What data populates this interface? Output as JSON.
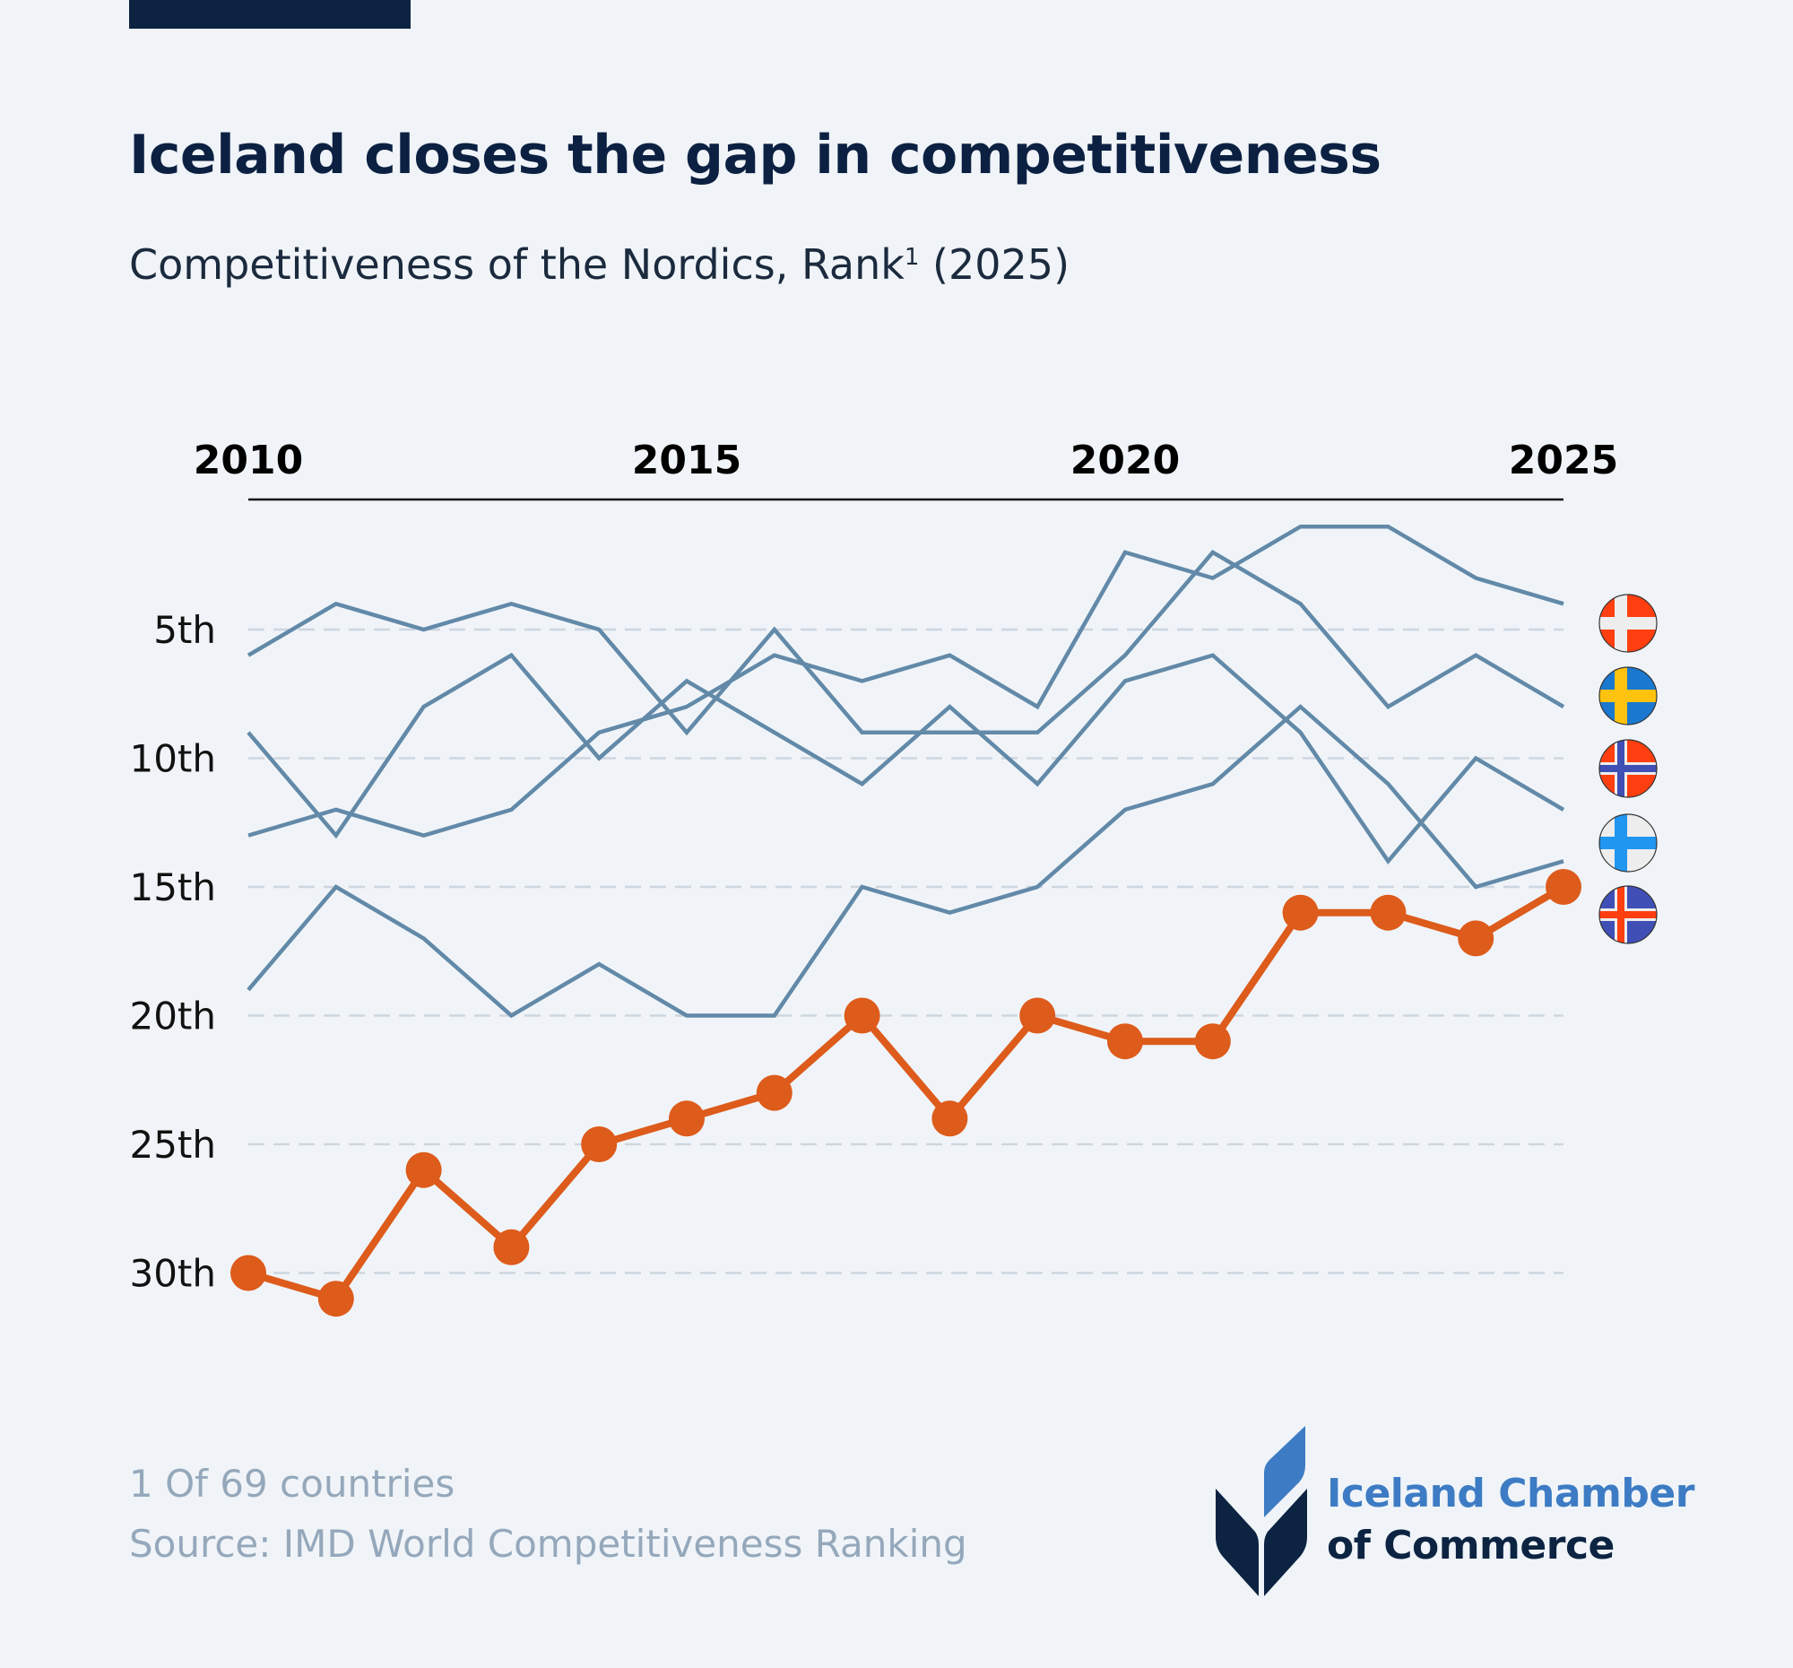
{
  "header": {
    "title": "Iceland closes the gap in competitiveness",
    "subtitle_main": "Competitiveness of the Nordics, Rank",
    "subtitle_sup": "1",
    "subtitle_year": " (2025)"
  },
  "footer": {
    "footnote": "1 Of 69 countries",
    "source": "Source: IMD World Competitiveness Ranking"
  },
  "logo": {
    "line1": "Iceland Chamber",
    "line2": "of Commerce",
    "colors": {
      "dark": "#0c2442",
      "light": "#3d7cc4"
    }
  },
  "colors": {
    "highlight": "#dd5b1b",
    "others": "#6289a8",
    "grid": "#cdd6df",
    "axis": "#111111",
    "background": "#f0f4f8"
  },
  "chart_data": {
    "type": "line",
    "title": "Iceland closes the gap in competitiveness",
    "subtitle": "Competitiveness of the Nordics, Rank¹ (2025)",
    "xlabel": "",
    "ylabel": "Rank",
    "x": [
      2010,
      2011,
      2012,
      2013,
      2014,
      2015,
      2016,
      2017,
      2018,
      2019,
      2020,
      2021,
      2022,
      2023,
      2024,
      2025
    ],
    "x_ticks": [
      "2010",
      "2015",
      "2020",
      "2025"
    ],
    "x_tick_values": [
      2010,
      2015,
      2020,
      2025
    ],
    "x_axis_position": "top",
    "y_ticks": [
      "5th",
      "10th",
      "15th",
      "20th",
      "25th",
      "30th"
    ],
    "y_tick_values": [
      5,
      10,
      15,
      20,
      25,
      30
    ],
    "y_inverted": true,
    "ylim": [
      1,
      31
    ],
    "grid": "horizontal-dashed",
    "legend": "right (flag icons at line ends)",
    "series": [
      {
        "name": "Denmark",
        "flag": "denmark-flag-icon",
        "highlight": false,
        "values": [
          13,
          12,
          13,
          12,
          9,
          8,
          6,
          7,
          6,
          8,
          2,
          3,
          1,
          1,
          3,
          4
        ]
      },
      {
        "name": "Sweden",
        "flag": "sweden-flag-icon",
        "highlight": false,
        "values": [
          6,
          4,
          5,
          4,
          5,
          9,
          5,
          9,
          9,
          9,
          6,
          2,
          4,
          8,
          6,
          8
        ]
      },
      {
        "name": "Norway",
        "flag": "norway-flag-icon",
        "highlight": false,
        "values": [
          9,
          13,
          8,
          6,
          10,
          7,
          9,
          11,
          8,
          11,
          7,
          6,
          9,
          14,
          10,
          12
        ]
      },
      {
        "name": "Finland",
        "flag": "finland-flag-icon",
        "highlight": false,
        "values": [
          19,
          15,
          17,
          20,
          18,
          20,
          20,
          15,
          16,
          15,
          12,
          11,
          8,
          11,
          15,
          14
        ]
      },
      {
        "name": "Iceland",
        "flag": "iceland-flag-icon",
        "highlight": true,
        "values": [
          30,
          31,
          26,
          29,
          25,
          24,
          23,
          20,
          24,
          20,
          21,
          21,
          16,
          16,
          17,
          15
        ]
      }
    ]
  }
}
